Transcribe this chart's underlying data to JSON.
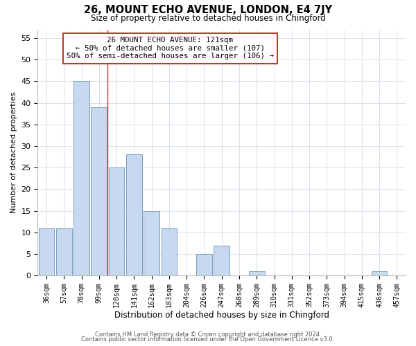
{
  "title": "26, MOUNT ECHO AVENUE, LONDON, E4 7JY",
  "subtitle": "Size of property relative to detached houses in Chingford",
  "xlabel": "Distribution of detached houses by size in Chingford",
  "ylabel": "Number of detached properties",
  "bar_labels": [
    "36sqm",
    "57sqm",
    "78sqm",
    "99sqm",
    "120sqm",
    "141sqm",
    "162sqm",
    "183sqm",
    "204sqm",
    "226sqm",
    "247sqm",
    "268sqm",
    "289sqm",
    "310sqm",
    "331sqm",
    "352sqm",
    "373sqm",
    "394sqm",
    "415sqm",
    "436sqm",
    "457sqm"
  ],
  "bar_values": [
    11,
    11,
    45,
    39,
    25,
    28,
    15,
    11,
    0,
    5,
    7,
    0,
    1,
    0,
    0,
    0,
    0,
    0,
    0,
    1,
    0
  ],
  "bar_color": "#c6d9f0",
  "bar_edgecolor": "#7a9fc2",
  "ylim": [
    0,
    57
  ],
  "yticks": [
    0,
    5,
    10,
    15,
    20,
    25,
    30,
    35,
    40,
    45,
    50,
    55
  ],
  "vline_x": 3.5,
  "vline_color": "#c0392b",
  "annotation_line1": "26 MOUNT ECHO AVENUE: 121sqm",
  "annotation_line2": "← 50% of detached houses are smaller (107)",
  "annotation_line3": "50% of semi-detached houses are larger (106) →",
  "annotation_box_color": "#c0392b",
  "footer_line1": "Contains HM Land Registry data © Crown copyright and database right 2024.",
  "footer_line2": "Contains public sector information licensed under the Open Government Licence v3.0.",
  "bg_color": "#ffffff",
  "grid_color": "#d0dce8"
}
